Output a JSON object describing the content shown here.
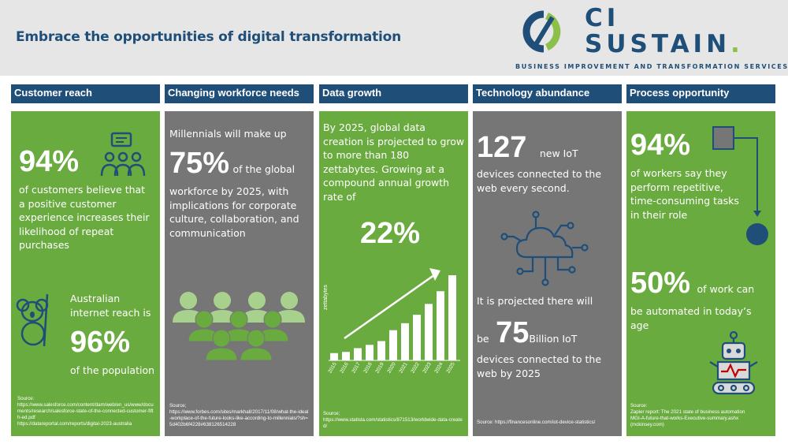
{
  "header": {
    "title": "Embrace the opportunities of digital transformation",
    "logo_line1": "CI",
    "logo_line2": "SUSTAIN",
    "logo_dot": ".",
    "tagline": "BUSINESS IMPROVEMENT AND TRANSFORMATION SERVICES"
  },
  "colors": {
    "navy": "#1f4e79",
    "green": "#6aab3f",
    "grey": "#767676",
    "light_green": "#a9d18e"
  },
  "columns": [
    {
      "header": "Customer reach",
      "stat1": "94%",
      "stat1_text": "of customers believe that a positive customer experience increases their likelihood of repeat purchases",
      "stat2_pre": "Australian internet reach is",
      "stat2": "96%",
      "stat2_post": "of the population",
      "source": "Source:\nhttps://www.salesforce.com/content/dam/web/en_us/www/documents/research/salesforce-state-of-the-connected-customer-fifth-ed.pdf\nhttps://datareportal.com/reports/digital-2023-australia",
      "icons": [
        "presentation-audience-icon",
        "koala-icon"
      ]
    },
    {
      "header": "Changing workforce needs",
      "intro": "Millennials will make up",
      "stat": "75%",
      "stat_suffix": "of the global",
      "body": "workforce by 2025, with implications for corporate culture, collaboration, and communication",
      "source": "Source;\nhttps://www.forbes.com/sites/markhall/2017/11/08/what-the-ideal-workplace-of-the-future-looks-like-according-to-millennials/?sh=5d402b6f4228#638126514228",
      "icons": [
        "people-group-icon"
      ]
    },
    {
      "header": "Data growth",
      "body": "By 2025, global data creation is projected to grow to more than 180 zettabytes. Growing at a compound annual growth rate of",
      "stat": "22%",
      "source": "Source;\nhttps://www.statista.com/statistics/871513/worldwide-data-created/",
      "icons": [
        "growth-arrow-icon"
      ]
    },
    {
      "header": "Technology abundance",
      "stat1": "127",
      "stat1_suffix": "new IoT",
      "stat1_text": "devices connected to the web every second.",
      "mid_text": "It is projected there will",
      "be": "be",
      "stat2": "75",
      "stat2_suffix": "Billion IoT",
      "stat2_text": "devices connected to the web by 2025",
      "source": "Source: https://financesonline.com/iot-device-statistics/",
      "icons": [
        "cloud-network-icon"
      ]
    },
    {
      "header": "Process opportunity",
      "stat1": "94%",
      "stat1_text": "of workers say they perform repetitive, time-consuming tasks in their role",
      "stat2": "50%",
      "stat2_suffix": "of work can",
      "stat2_text": "be automated in today’s age",
      "source": "Source:\nZapier report: The 2021 state of business automation\nMGI-A-future-that-works-Executive-summary.ashx\n(mckinsey.com)",
      "icons": [
        "process-flow-icon",
        "robot-icon"
      ]
    }
  ],
  "chart_data": {
    "type": "bar",
    "ylabel": "zettabytes",
    "categories": [
      "2015",
      "2016",
      "2017",
      "2018",
      "2019",
      "2020",
      "2021",
      "2022",
      "2023",
      "2024",
      "2025"
    ],
    "values": [
      15.5,
      18,
      26,
      33,
      41,
      64.2,
      79,
      97,
      120,
      147,
      181
    ]
  }
}
